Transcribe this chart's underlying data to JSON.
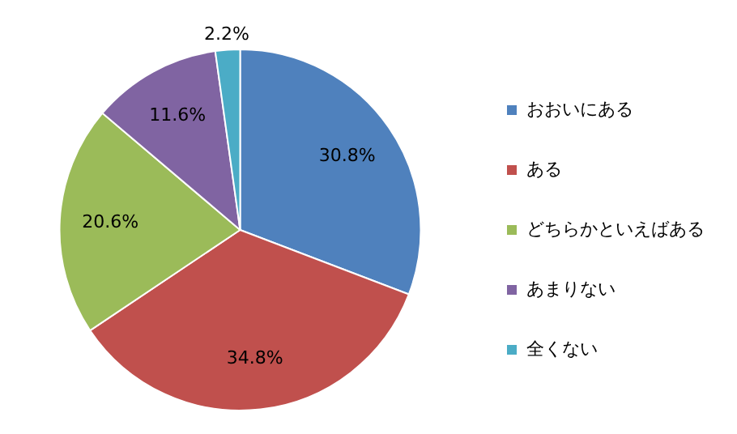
{
  "chart_data": {
    "type": "pie",
    "categories": [
      "おおいにある",
      "ある",
      "どちらかといえばある",
      "あまりない",
      "全くない"
    ],
    "values": [
      30.8,
      34.8,
      20.6,
      11.6,
      2.2
    ],
    "colors": [
      "#4f81bd",
      "#c0504d",
      "#9bbb59",
      "#8064a2",
      "#4bacc6"
    ],
    "value_labels": [
      "30.8%",
      "34.8%",
      "20.6%",
      "11.6%",
      "2.2%"
    ],
    "legend": "right"
  }
}
